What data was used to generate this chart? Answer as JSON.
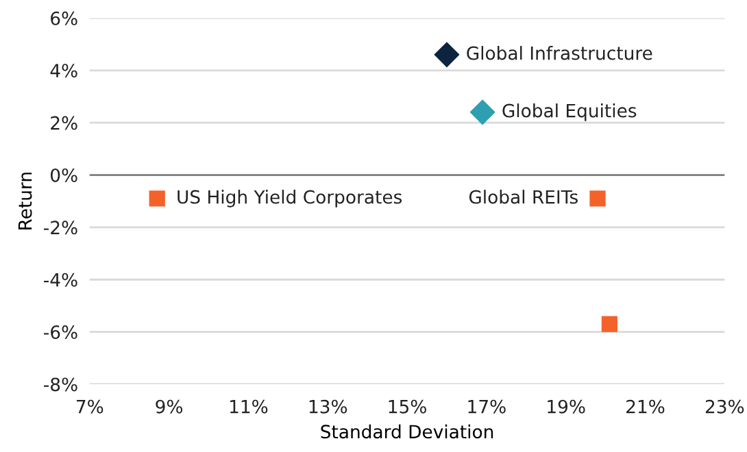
{
  "chart_data": {
    "type": "scatter",
    "xlabel": "Standard Deviation",
    "ylabel": "Return",
    "xlim": [
      7,
      23
    ],
    "xticks": [
      {
        "value": 7,
        "label": "7%"
      },
      {
        "value": 9,
        "label": "9%"
      },
      {
        "value": 11,
        "label": "11%"
      },
      {
        "value": 13,
        "label": "13%"
      },
      {
        "value": 15,
        "label": "15%"
      },
      {
        "value": 17,
        "label": "17%"
      },
      {
        "value": 19,
        "label": "19%"
      },
      {
        "value": 21,
        "label": "21%"
      },
      {
        "value": 23,
        "label": "23%"
      }
    ],
    "ylim": [
      -8,
      6
    ],
    "yticks": [
      {
        "value": -8,
        "label": "-8%"
      },
      {
        "value": -6,
        "label": "-6%"
      },
      {
        "value": -4,
        "label": "-4%"
      },
      {
        "value": -2,
        "label": "-2%"
      },
      {
        "value": 0,
        "label": "0%"
      },
      {
        "value": 2,
        "label": "2%"
      },
      {
        "value": 4,
        "label": "4%"
      },
      {
        "value": 6,
        "label": "6%"
      }
    ],
    "grid": "y",
    "legend": false,
    "ref_lines": [
      {
        "axis": "y",
        "value": 0,
        "color": "#808080"
      }
    ],
    "series": [
      {
        "name": "Global Infrastructure",
        "color": "#0d2340",
        "marker": "diamond",
        "x": [
          16.0
        ],
        "values": [
          4.6
        ]
      },
      {
        "name": "Global Equities",
        "color": "#2d9fb0",
        "marker": "diamond",
        "x": [
          16.9
        ],
        "values": [
          2.4
        ]
      },
      {
        "name": "US High Yield Corporates",
        "color": "#f4622a",
        "marker": "square",
        "x": [
          8.7
        ],
        "values": [
          -0.9
        ]
      },
      {
        "name": "Global REITs",
        "color": "#f4622a",
        "marker": "square",
        "x": [
          19.8
        ],
        "values": [
          -0.9
        ]
      },
      {
        "color": "#f4622a",
        "marker": "square",
        "x": [
          20.1
        ],
        "values": [
          -5.7
        ]
      }
    ]
  }
}
